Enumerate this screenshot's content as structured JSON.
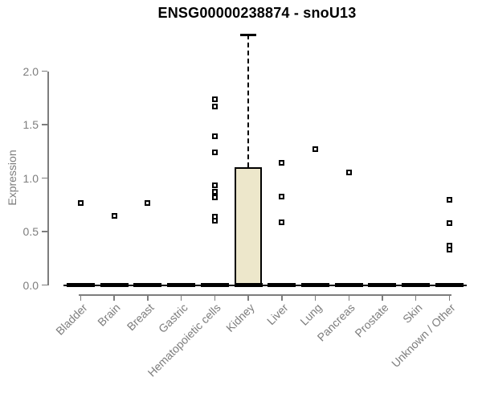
{
  "chart_data": {
    "type": "boxplot",
    "title": "ENSG00000238874 - snoU13",
    "ylabel": "Expression",
    "xlabel": "",
    "ylim": [
      0,
      2.4
    ],
    "yticks": [
      0.0,
      0.5,
      1.0,
      1.5,
      2.0
    ],
    "grid": false,
    "legend": null,
    "categories": [
      "Bladder",
      "Brain",
      "Breast",
      "Gastric",
      "Hematopoietic cells",
      "Kidney",
      "Liver",
      "Lung",
      "Pancreas",
      "Prostate",
      "Skin",
      "Unknown / Other"
    ],
    "boxes": [
      {
        "category": "Bladder",
        "median": 0,
        "q1": 0,
        "q3": 0,
        "whisker_low": 0,
        "whisker_high": 0,
        "outliers": [
          0.77
        ]
      },
      {
        "category": "Brain",
        "median": 0,
        "q1": 0,
        "q3": 0,
        "whisker_low": 0,
        "whisker_high": 0,
        "outliers": [
          0.65
        ]
      },
      {
        "category": "Breast",
        "median": 0,
        "q1": 0,
        "q3": 0,
        "whisker_low": 0,
        "whisker_high": 0,
        "outliers": [
          0.77
        ]
      },
      {
        "category": "Gastric",
        "median": 0,
        "q1": 0,
        "q3": 0,
        "whisker_low": 0,
        "whisker_high": 0,
        "outliers": []
      },
      {
        "category": "Hematopoietic cells",
        "median": 0,
        "q1": 0,
        "q3": 0,
        "whisker_low": 0,
        "whisker_high": 0,
        "outliers": [
          1.74,
          1.67,
          1.39,
          1.24,
          0.93,
          0.87,
          0.82,
          0.64,
          0.6
        ]
      },
      {
        "category": "Kidney",
        "median": 0,
        "q1": 0,
        "q3": 1.1,
        "whisker_low": 0,
        "whisker_high": 2.34,
        "outliers": []
      },
      {
        "category": "Liver",
        "median": 0,
        "q1": 0,
        "q3": 0,
        "whisker_low": 0,
        "whisker_high": 0,
        "outliers": [
          1.14,
          0.83,
          0.59
        ]
      },
      {
        "category": "Lung",
        "median": 0,
        "q1": 0,
        "q3": 0,
        "whisker_low": 0,
        "whisker_high": 0,
        "outliers": [
          1.27
        ]
      },
      {
        "category": "Pancreas",
        "median": 0,
        "q1": 0,
        "q3": 0,
        "whisker_low": 0,
        "whisker_high": 0,
        "outliers": [
          1.05
        ]
      },
      {
        "category": "Prostate",
        "median": 0,
        "q1": 0,
        "q3": 0,
        "whisker_low": 0,
        "whisker_high": 0,
        "outliers": []
      },
      {
        "category": "Skin",
        "median": 0,
        "q1": 0,
        "q3": 0,
        "whisker_low": 0,
        "whisker_high": 0,
        "outliers": []
      },
      {
        "category": "Unknown / Other",
        "median": 0,
        "q1": 0,
        "q3": 0,
        "whisker_low": 0,
        "whisker_high": 0,
        "outliers": [
          0.8,
          0.58,
          0.37,
          0.33
        ]
      }
    ],
    "colors": {
      "box_fill": "#EDE7CB",
      "box_border": "#000000",
      "whisker": "#000000",
      "outlier": "#000000",
      "axis": "#7D7D7D",
      "tick_text": "#7D7D7D",
      "title_text": "#000000",
      "background": "#FFFFFF"
    }
  }
}
